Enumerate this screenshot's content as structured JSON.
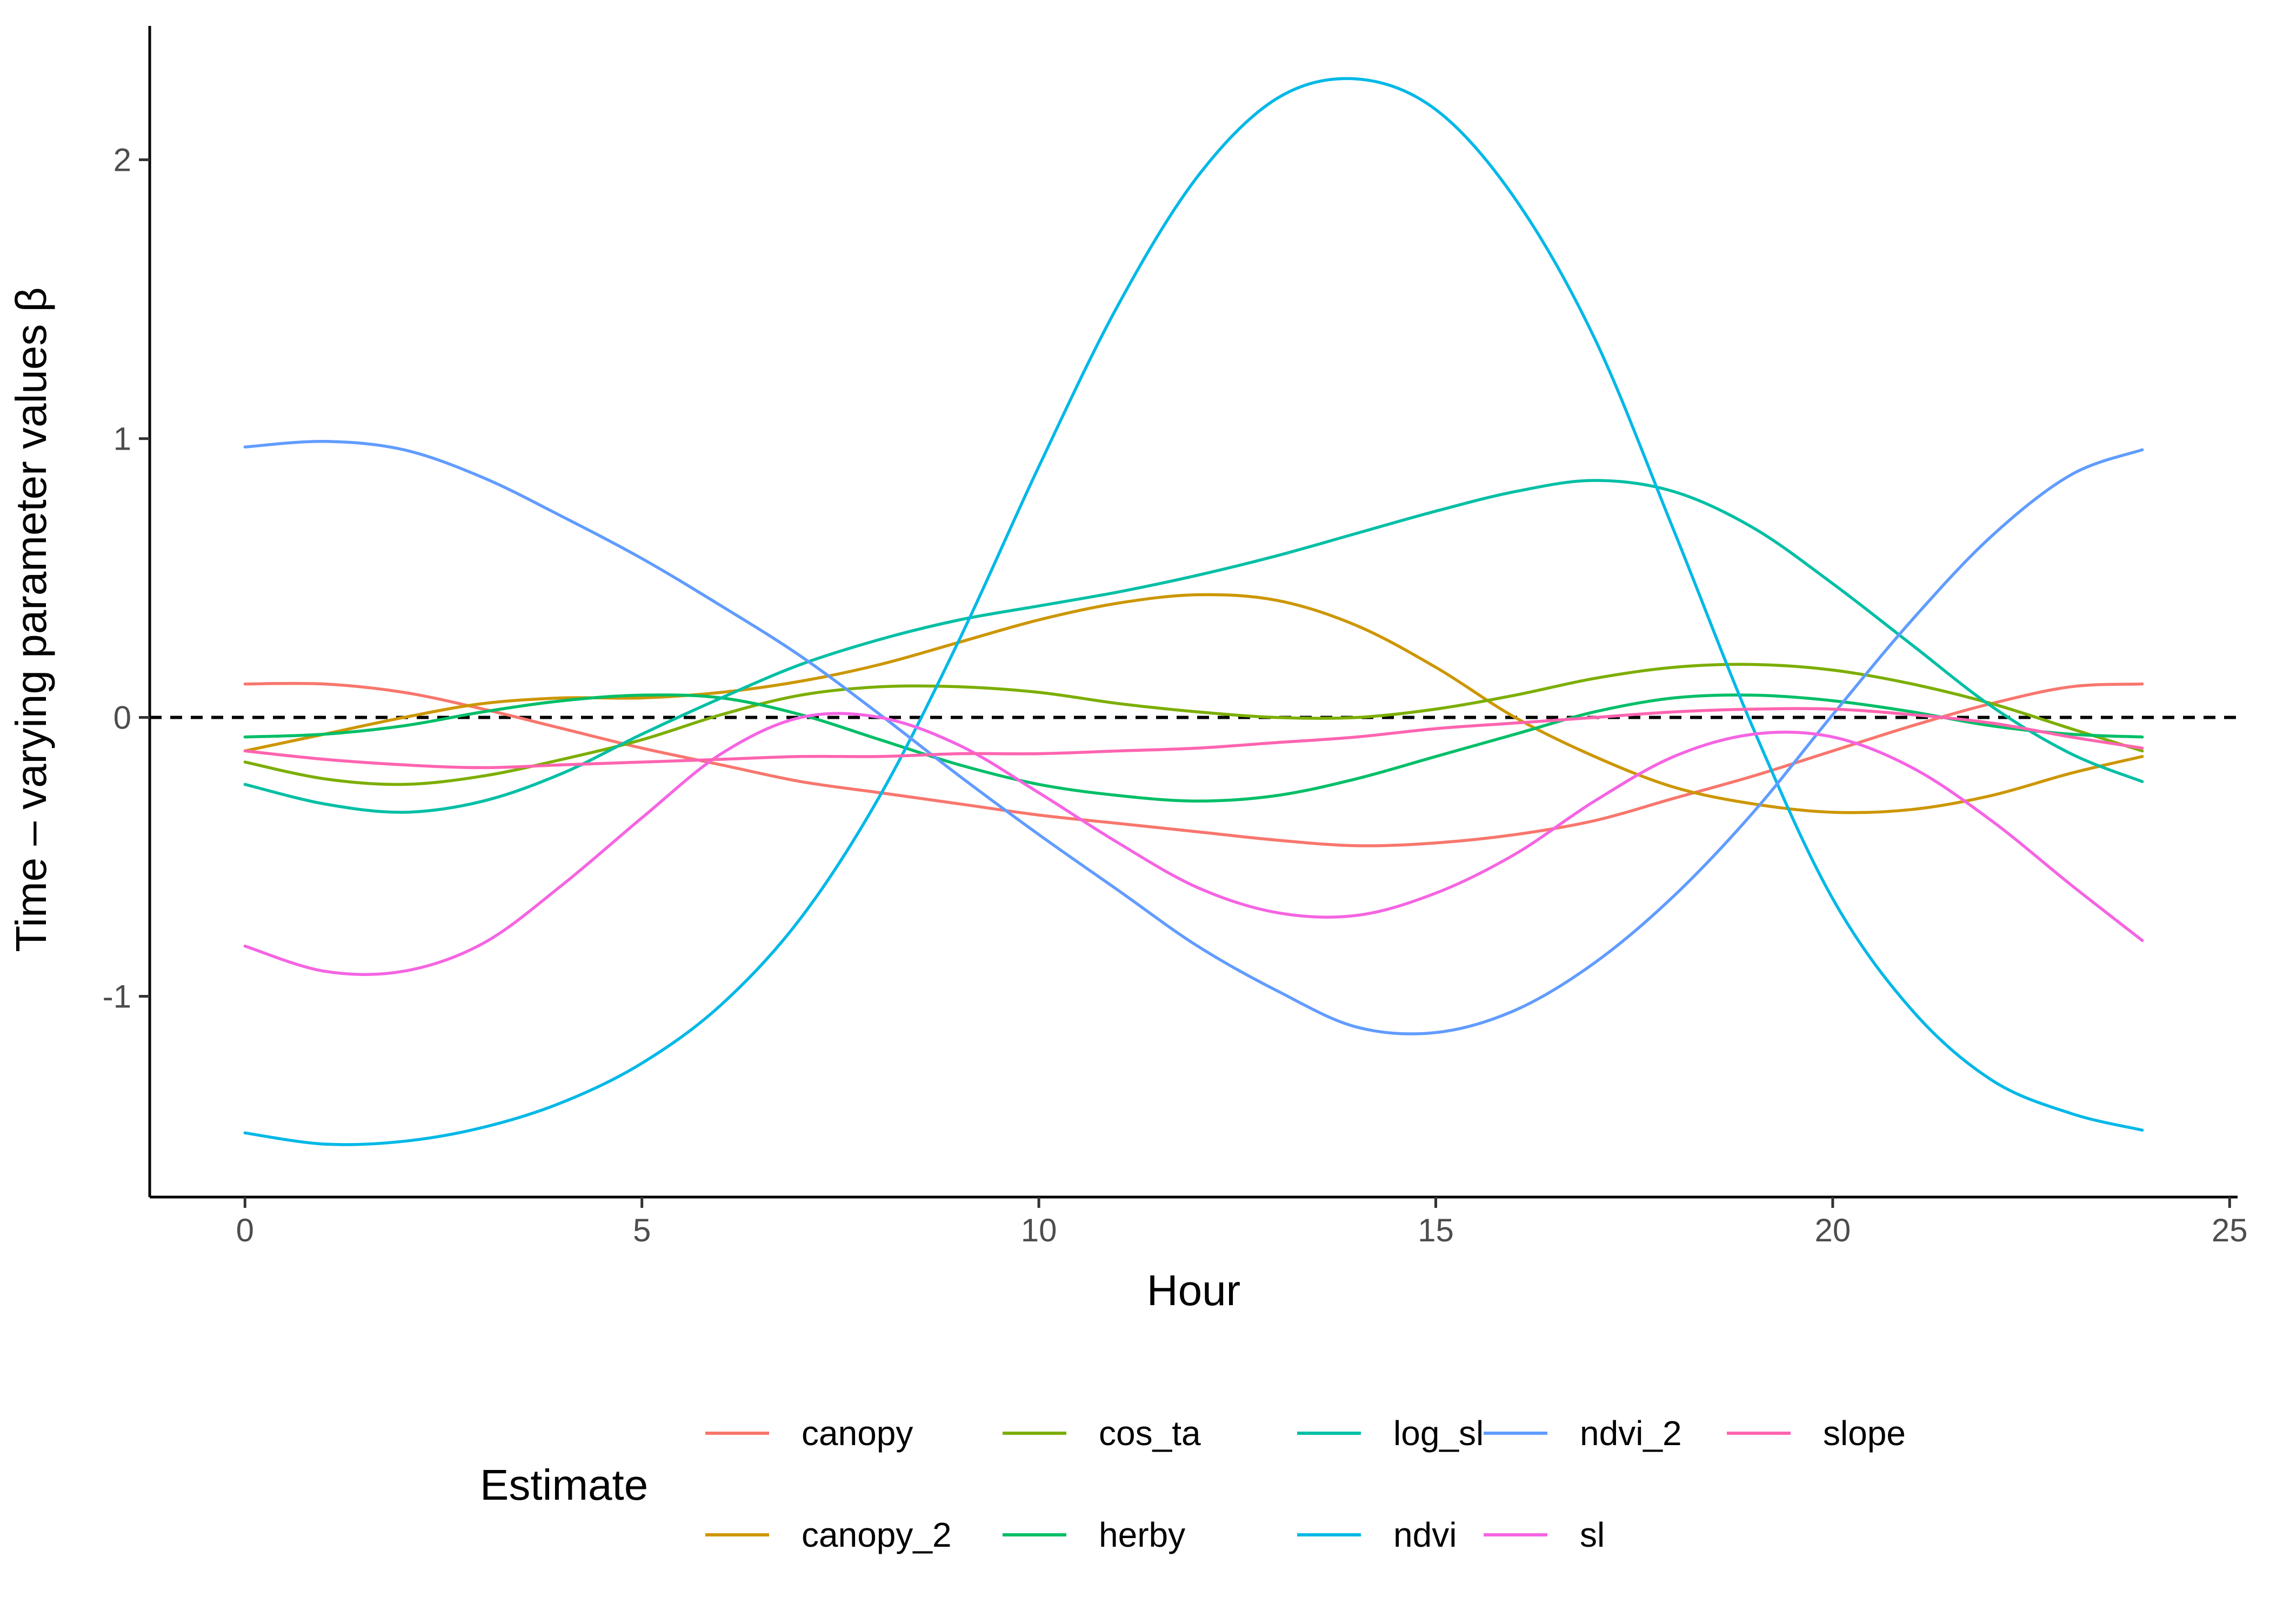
{
  "chart_data": {
    "type": "line",
    "xlabel": "Hour",
    "ylabel": "Time – varying parameter values β",
    "xlim": [
      -1.2,
      25.1
    ],
    "ylim": [
      -1.72,
      2.48
    ],
    "xticks": [
      0,
      5,
      10,
      15,
      20,
      25
    ],
    "xtick_labels": [
      "0",
      "5",
      "10",
      "15",
      "20",
      "25"
    ],
    "yticks": [
      -1,
      0,
      1,
      2
    ],
    "ytick_labels": [
      "-1",
      "0",
      "1",
      "2"
    ],
    "grid": false,
    "reference_line": {
      "y": 0,
      "style": "dashed",
      "color": "#000000"
    },
    "legend": {
      "title": "Estimate",
      "position": "bottom",
      "ncol": 5
    },
    "series": [
      {
        "name": "canopy",
        "color": "#F8766D",
        "x": [
          0,
          1,
          2,
          3,
          4,
          5,
          6,
          7,
          8,
          9,
          10,
          11,
          12,
          13,
          14,
          15,
          16,
          17,
          18,
          19,
          20,
          21,
          22,
          23,
          23.9
        ],
        "y": [
          0.12,
          0.12,
          0.09,
          0.03,
          -0.04,
          -0.11,
          -0.17,
          -0.23,
          -0.27,
          -0.31,
          -0.35,
          -0.38,
          -0.41,
          -0.44,
          -0.46,
          -0.45,
          -0.42,
          -0.37,
          -0.29,
          -0.21,
          -0.12,
          -0.03,
          0.05,
          0.11,
          0.12
        ]
      },
      {
        "name": "canopy_2",
        "color": "#CD9600",
        "x": [
          0,
          1,
          2,
          3,
          4,
          5,
          6,
          7,
          8,
          9,
          10,
          11,
          12,
          13,
          14,
          15,
          16,
          17,
          18,
          19,
          20,
          21,
          22,
          23,
          23.9
        ],
        "y": [
          -0.12,
          -0.06,
          0.0,
          0.05,
          0.07,
          0.07,
          0.09,
          0.13,
          0.19,
          0.27,
          0.35,
          0.41,
          0.44,
          0.42,
          0.33,
          0.18,
          0.0,
          -0.14,
          -0.25,
          -0.31,
          -0.34,
          -0.33,
          -0.28,
          -0.2,
          -0.14
        ]
      },
      {
        "name": "cos_ta",
        "color": "#7CAE00",
        "x": [
          0,
          1,
          2,
          3,
          4,
          5,
          6,
          7,
          8,
          9,
          10,
          11,
          12,
          13,
          14,
          15,
          16,
          17,
          18,
          19,
          20,
          21,
          22,
          23,
          23.9
        ],
        "y": [
          -0.16,
          -0.22,
          -0.24,
          -0.21,
          -0.15,
          -0.08,
          0.01,
          0.08,
          0.11,
          0.11,
          0.09,
          0.05,
          0.02,
          0.0,
          0.0,
          0.03,
          0.08,
          0.14,
          0.18,
          0.19,
          0.17,
          0.12,
          0.05,
          -0.04,
          -0.12
        ]
      },
      {
        "name": "herby",
        "color": "#00BE67",
        "x": [
          0,
          1,
          2,
          3,
          4,
          5,
          6,
          7,
          8,
          9,
          10,
          11,
          12,
          13,
          14,
          15,
          16,
          17,
          18,
          19,
          20,
          21,
          22,
          23,
          23.9
        ],
        "y": [
          -0.07,
          -0.06,
          -0.03,
          0.02,
          0.06,
          0.08,
          0.07,
          0.01,
          -0.08,
          -0.17,
          -0.24,
          -0.28,
          -0.3,
          -0.28,
          -0.22,
          -0.14,
          -0.06,
          0.02,
          0.07,
          0.08,
          0.06,
          0.02,
          -0.03,
          -0.06,
          -0.07
        ]
      },
      {
        "name": "log_sl",
        "color": "#00BFA5",
        "x": [
          0,
          1,
          2,
          3,
          4,
          5,
          6,
          7,
          8,
          9,
          10,
          11,
          12,
          13,
          14,
          15,
          16,
          17,
          18,
          19,
          20,
          21,
          22,
          23,
          23.9
        ],
        "y": [
          -0.24,
          -0.31,
          -0.34,
          -0.3,
          -0.2,
          -0.06,
          0.07,
          0.19,
          0.28,
          0.35,
          0.4,
          0.45,
          0.51,
          0.58,
          0.66,
          0.74,
          0.81,
          0.85,
          0.81,
          0.68,
          0.48,
          0.26,
          0.04,
          -0.13,
          -0.23
        ]
      },
      {
        "name": "ndvi",
        "color": "#00B8E7",
        "x": [
          0,
          1,
          2,
          3,
          4,
          5,
          6,
          7,
          8,
          9,
          10,
          11,
          12,
          13,
          14,
          15,
          16,
          17,
          18,
          19,
          20,
          21,
          22,
          23,
          23.9
        ],
        "y": [
          -1.49,
          -1.53,
          -1.52,
          -1.47,
          -1.38,
          -1.24,
          -1.03,
          -0.72,
          -0.28,
          0.28,
          0.9,
          1.48,
          1.94,
          2.22,
          2.29,
          2.18,
          1.86,
          1.36,
          0.67,
          -0.04,
          -0.65,
          -1.05,
          -1.3,
          -1.42,
          -1.48
        ]
      },
      {
        "name": "ndvi_2",
        "color": "#619CFF",
        "x": [
          0,
          1,
          2,
          3,
          4,
          5,
          6,
          7,
          8,
          9,
          10,
          11,
          12,
          13,
          14,
          15,
          16,
          17,
          18,
          19,
          20,
          21,
          22,
          23,
          23.9
        ],
        "y": [
          0.97,
          0.99,
          0.96,
          0.86,
          0.72,
          0.57,
          0.4,
          0.22,
          0.01,
          -0.21,
          -0.42,
          -0.62,
          -0.82,
          -0.98,
          -1.11,
          -1.13,
          -1.05,
          -0.88,
          -0.64,
          -0.34,
          0.01,
          0.35,
          0.65,
          0.87,
          0.96
        ]
      },
      {
        "name": "sl",
        "color": "#F564E3",
        "x": [
          0,
          1,
          2,
          3,
          4,
          5,
          6,
          7,
          8,
          9,
          10,
          11,
          12,
          13,
          14,
          15,
          16,
          17,
          18,
          19,
          20,
          21,
          22,
          23,
          23.9
        ],
        "y": [
          -0.82,
          -0.91,
          -0.91,
          -0.81,
          -0.6,
          -0.36,
          -0.13,
          0.0,
          0.0,
          -0.1,
          -0.27,
          -0.45,
          -0.61,
          -0.7,
          -0.71,
          -0.63,
          -0.49,
          -0.3,
          -0.14,
          -0.06,
          -0.07,
          -0.18,
          -0.37,
          -0.6,
          -0.8
        ]
      },
      {
        "name": "slope",
        "color": "#FF64B0",
        "x": [
          0,
          1,
          2,
          3,
          4,
          5,
          6,
          7,
          8,
          9,
          10,
          11,
          12,
          13,
          14,
          15,
          16,
          17,
          18,
          19,
          20,
          21,
          22,
          23,
          23.9
        ],
        "y": [
          -0.12,
          -0.15,
          -0.17,
          -0.18,
          -0.17,
          -0.16,
          -0.15,
          -0.14,
          -0.14,
          -0.13,
          -0.13,
          -0.12,
          -0.11,
          -0.09,
          -0.07,
          -0.04,
          -0.02,
          0.0,
          0.02,
          0.03,
          0.03,
          0.01,
          -0.02,
          -0.07,
          -0.11
        ]
      }
    ]
  }
}
